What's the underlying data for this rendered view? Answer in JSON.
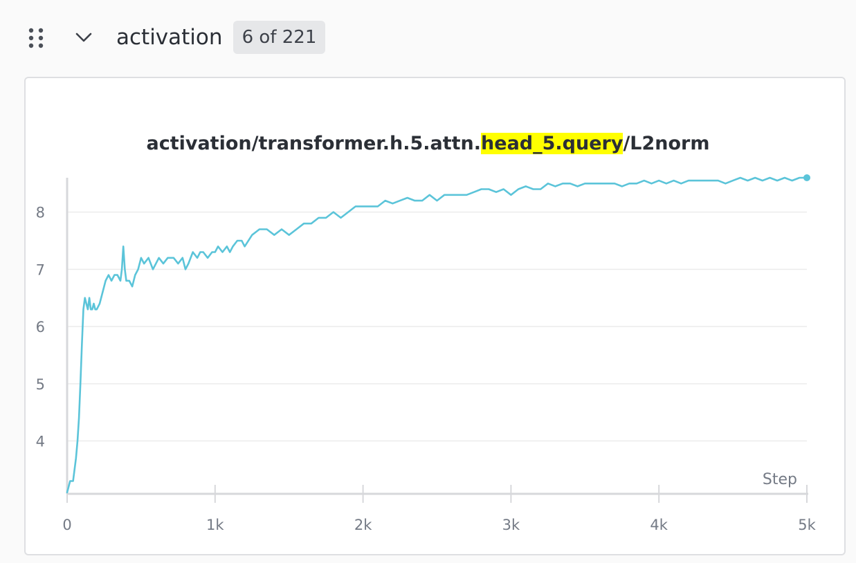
{
  "section": {
    "title": "activation",
    "count": "6 of 221"
  },
  "colors": {
    "line": "#5bc4d9",
    "highlight": "#ffff00",
    "grid": "#ececec",
    "axis": "#d7d8db"
  },
  "icons": {
    "drag": "drag-handle-icon",
    "collapse": "chevron-down-icon"
  },
  "chart_data": {
    "type": "line",
    "title_prefix": "activation/transformer.h.5.attn.",
    "title_highlight": "head_5.query",
    "title_suffix": "/L2norm",
    "xlabel": "Step",
    "ylabel": "",
    "xlim": [
      0,
      5000
    ],
    "ylim": [
      3.1,
      8.6
    ],
    "x_ticks": [
      {
        "value": 0,
        "label": "0"
      },
      {
        "value": 1000,
        "label": "1k"
      },
      {
        "value": 2000,
        "label": "2k"
      },
      {
        "value": 3000,
        "label": "3k"
      },
      {
        "value": 4000,
        "label": "4k"
      },
      {
        "value": 5000,
        "label": "5k"
      }
    ],
    "y_ticks": [
      {
        "value": 4,
        "label": "4"
      },
      {
        "value": 5,
        "label": "5"
      },
      {
        "value": 6,
        "label": "6"
      },
      {
        "value": 7,
        "label": "7"
      },
      {
        "value": 8,
        "label": "8"
      }
    ],
    "grid": true,
    "series": [
      {
        "color": "#5bc4d9",
        "x": [
          0,
          20,
          40,
          50,
          60,
          70,
          80,
          90,
          100,
          110,
          120,
          130,
          140,
          150,
          160,
          170,
          180,
          190,
          200,
          220,
          240,
          260,
          280,
          300,
          320,
          340,
          360,
          370,
          380,
          390,
          400,
          420,
          440,
          460,
          480,
          500,
          520,
          550,
          580,
          600,
          620,
          650,
          680,
          700,
          720,
          750,
          780,
          800,
          820,
          850,
          880,
          900,
          920,
          950,
          980,
          1000,
          1020,
          1050,
          1080,
          1100,
          1120,
          1150,
          1180,
          1200,
          1250,
          1300,
          1350,
          1400,
          1450,
          1500,
          1550,
          1600,
          1650,
          1700,
          1750,
          1800,
          1850,
          1900,
          1950,
          2000,
          2050,
          2100,
          2150,
          2200,
          2250,
          2300,
          2350,
          2400,
          2450,
          2500,
          2550,
          2600,
          2650,
          2700,
          2750,
          2800,
          2850,
          2900,
          2950,
          3000,
          3050,
          3100,
          3150,
          3200,
          3250,
          3300,
          3350,
          3400,
          3450,
          3500,
          3550,
          3600,
          3650,
          3700,
          3750,
          3800,
          3850,
          3900,
          3950,
          4000,
          4050,
          4100,
          4150,
          4200,
          4250,
          4300,
          4350,
          4400,
          4450,
          4500,
          4550,
          4600,
          4650,
          4700,
          4750,
          4800,
          4850,
          4900,
          4950,
          5000
        ],
        "y": [
          3.1,
          3.3,
          3.3,
          3.5,
          3.7,
          4.0,
          4.4,
          5.0,
          5.7,
          6.3,
          6.5,
          6.4,
          6.3,
          6.5,
          6.3,
          6.3,
          6.4,
          6.3,
          6.3,
          6.4,
          6.6,
          6.8,
          6.9,
          6.8,
          6.9,
          6.9,
          6.8,
          7.0,
          7.4,
          7.0,
          6.8,
          6.8,
          6.7,
          6.9,
          7.0,
          7.2,
          7.1,
          7.2,
          7.0,
          7.1,
          7.2,
          7.1,
          7.2,
          7.2,
          7.2,
          7.1,
          7.2,
          7.0,
          7.1,
          7.3,
          7.2,
          7.3,
          7.3,
          7.2,
          7.3,
          7.3,
          7.4,
          7.3,
          7.4,
          7.3,
          7.4,
          7.5,
          7.5,
          7.4,
          7.6,
          7.7,
          7.7,
          7.6,
          7.7,
          7.6,
          7.7,
          7.8,
          7.8,
          7.9,
          7.9,
          8.0,
          7.9,
          8.0,
          8.1,
          8.1,
          8.1,
          8.1,
          8.2,
          8.15,
          8.2,
          8.25,
          8.2,
          8.2,
          8.3,
          8.2,
          8.3,
          8.3,
          8.3,
          8.3,
          8.35,
          8.4,
          8.4,
          8.35,
          8.4,
          8.3,
          8.4,
          8.45,
          8.4,
          8.4,
          8.5,
          8.45,
          8.5,
          8.5,
          8.45,
          8.5,
          8.5,
          8.5,
          8.5,
          8.5,
          8.45,
          8.5,
          8.5,
          8.55,
          8.5,
          8.55,
          8.5,
          8.55,
          8.5,
          8.55,
          8.55,
          8.55,
          8.55,
          8.55,
          8.5,
          8.55,
          8.6,
          8.55,
          8.6,
          8.55,
          8.6,
          8.55,
          8.6,
          8.55,
          8.6,
          8.6
        ]
      }
    ]
  }
}
